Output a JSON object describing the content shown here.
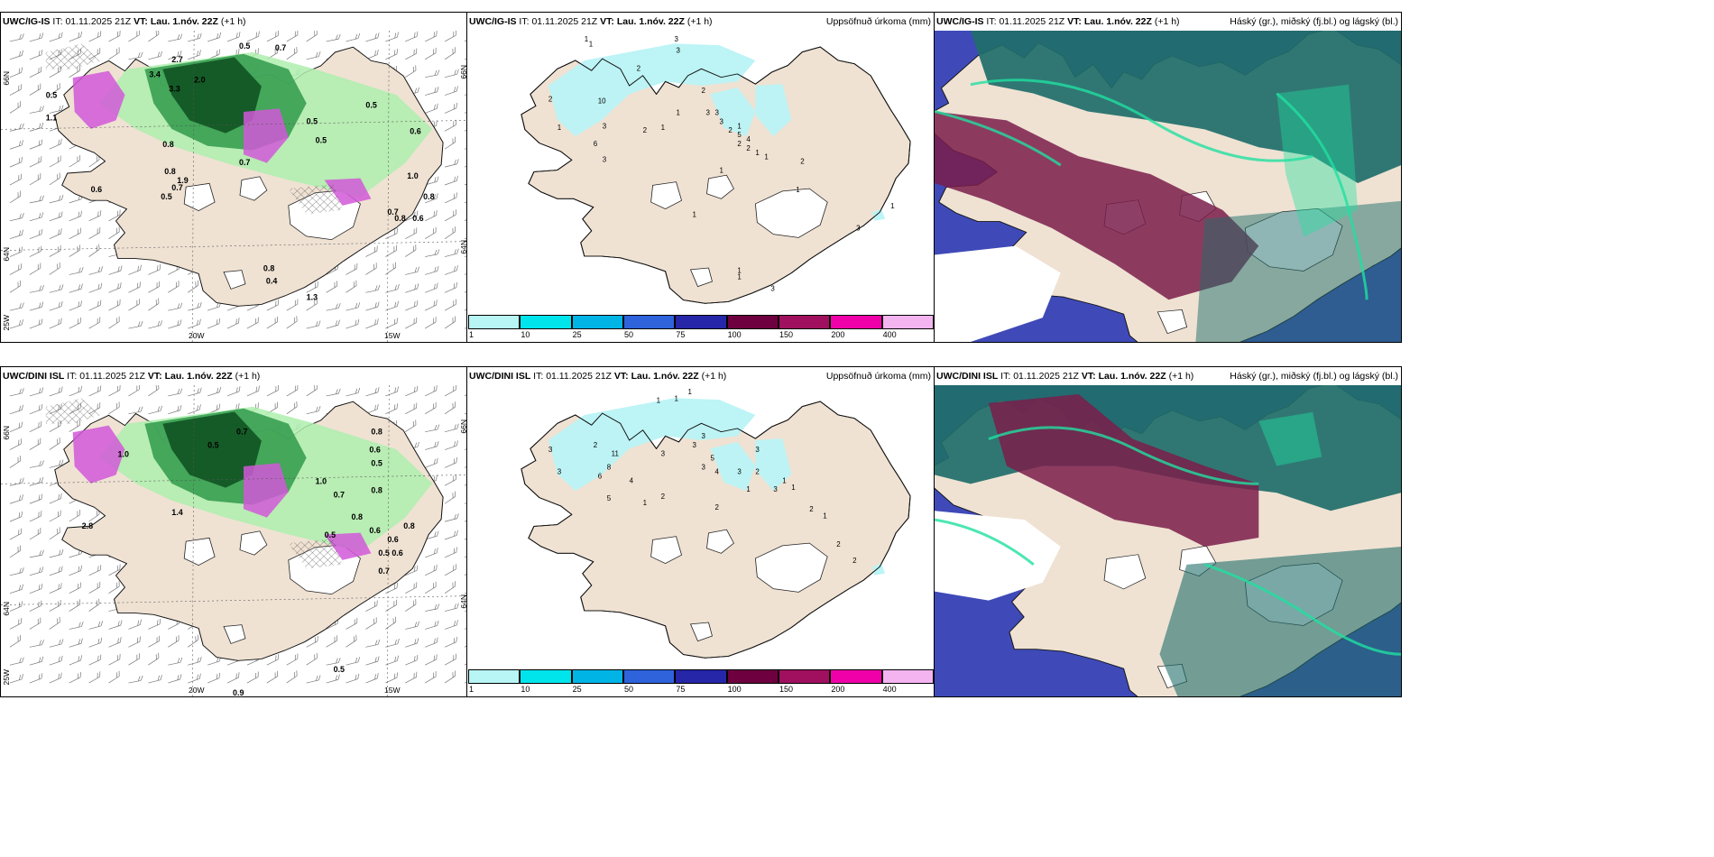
{
  "panels": {
    "p1": {
      "model": "UWC/IG-IS",
      "it_label": "IT:",
      "it": "01.11.2025 21Z",
      "vt_label": "VT:",
      "vt": "Lau. 1.nóv. 22Z",
      "lead": "(+1 h)",
      "right": ""
    },
    "p2": {
      "model": "UWC/IG-IS",
      "it_label": "IT:",
      "it": "01.11.2025 21Z",
      "vt_label": "VT:",
      "vt": "Lau. 1.nóv. 22Z",
      "lead": "(+1 h)",
      "right": "Uppsöfnuð úrkoma (mm)"
    },
    "p3": {
      "model": "UWC/IG-IS",
      "it_label": "IT:",
      "it": "01.11.2025 21Z",
      "vt_label": "VT:",
      "vt": "Lau. 1.nóv. 22Z",
      "lead": "(+1 h)",
      "right": "Háský (gr.), miðský (fj.bl.) og lágský (bl.)"
    },
    "p4": {
      "model": "UWC/DINI ISL",
      "it_label": "IT:",
      "it": "01.11.2025 21Z",
      "vt_label": "VT:",
      "vt": "Lau. 1.nóv. 22Z",
      "lead": "(+1 h)",
      "right": ""
    },
    "p5": {
      "model": "UWC/DINI ISL",
      "it_label": "IT:",
      "it": "01.11.2025 21Z",
      "vt_label": "VT:",
      "vt": "Lau. 1.nóv. 22Z",
      "lead": "(+1 h)",
      "right": "Uppsöfnuð úrkoma (mm)"
    },
    "p6": {
      "model": "UWC/DINI ISL",
      "it_label": "IT:",
      "it": "01.11.2025 21Z",
      "vt_label": "VT:",
      "vt": "Lau. 1.nóv. 22Z",
      "lead": "(+1 h)",
      "right": "Háský (gr.), miðský (fj.bl.) og lágský (bl.)"
    }
  },
  "axis_labels": {
    "lat66": "66N",
    "lat64": "64N",
    "lon25": "25W",
    "lon20": "20W",
    "lon15": "15W",
    "lat66r": "66N",
    "lat64r": "64N"
  },
  "colorbar": {
    "ticks": [
      "1",
      "10",
      "25",
      "50",
      "75",
      "100",
      "150",
      "200",
      "400"
    ],
    "colors": [
      "#b8f5f5",
      "#00e5ec",
      "#00b4e6",
      "#2e63dc",
      "#2626a8",
      "#6e0040",
      "#a0105f",
      "#f000a8",
      "#f4b4f0"
    ]
  },
  "map_colors": {
    "land": "#efe2d3",
    "sea": "#ffffff",
    "precip_light": "#aeeeae",
    "precip_mid": "#2f9a4a",
    "precip_dark": "#0d4d1f",
    "snow": "#d158d8",
    "accum": "#b9f3f6",
    "cloud_high": "#1f6e6a",
    "cloud_mid": "#3c50c9",
    "cloud_low": "#7a1d4a",
    "cloud_edge": "#20e0a0"
  },
  "precip_labels_top": [
    "2.7",
    "0.5",
    "0.7",
    "2.0",
    "3.3",
    "3.4",
    "0.5",
    "1.1",
    "0.5",
    "0.6",
    "0.5",
    "0.5",
    "0.8",
    "1.9",
    "0.7",
    "0.8",
    "0.5",
    "0.7",
    "0.6",
    "0.8",
    "0.4",
    "1.3",
    "1.0",
    "0.8",
    "0.7",
    "0.8",
    "0.6"
  ],
  "precip_labels_bottom": [
    "0.5",
    "0.7",
    "0.8",
    "0.6",
    "0.5",
    "0.8",
    "2.8",
    "1.0",
    "1.4",
    "0.5",
    "0.7",
    "0.6",
    "0.5",
    "1.0",
    "0.8",
    "0.6",
    "0.6",
    "0.7",
    "0.9",
    "0.5",
    "0.8"
  ],
  "accum_labels_top": [
    "1",
    "1",
    "3",
    "3",
    "2",
    "2",
    "10",
    "1",
    "3",
    "6",
    "3",
    "2",
    "1",
    "2",
    "1",
    "3",
    "3",
    "3",
    "2",
    "1",
    "5",
    "4",
    "1",
    "1",
    "2",
    "2",
    "1",
    "2",
    "1",
    "1",
    "3",
    "1",
    "1",
    "3",
    "1"
  ],
  "accum_labels_bottom": [
    "1",
    "1",
    "1",
    "3",
    "11",
    "8",
    "2",
    "3",
    "6",
    "5",
    "4",
    "1",
    "2",
    "3",
    "3",
    "3",
    "5",
    "4",
    "3",
    "3",
    "2",
    "3",
    "1",
    "3",
    "2",
    "1",
    "1",
    "2",
    "1",
    "2",
    "2"
  ]
}
